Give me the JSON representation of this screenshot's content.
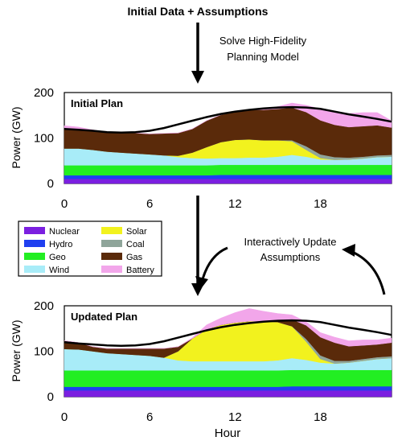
{
  "header": {
    "top_label": "Initial Data + Assumptions",
    "solve_label_line1": "Solve High-Fidelity",
    "solve_label_line2": "Planning Model",
    "update_label_line1": "Interactively Update",
    "update_label_line2": "Assumptions"
  },
  "axes": {
    "ylabel": "Power (GW)",
    "xlabel": "Hour",
    "yticks": [
      "0",
      "100",
      "200"
    ],
    "xticks": [
      "0",
      "6",
      "12",
      "18"
    ]
  },
  "legend": {
    "items": [
      {
        "label": "Nuclear",
        "color": "#7b1fe0"
      },
      {
        "label": "Hydro",
        "color": "#1f3ff0"
      },
      {
        "label": "Geo",
        "color": "#22ee22"
      },
      {
        "label": "Wind",
        "color": "#a8ecf8"
      },
      {
        "label": "Solar",
        "color": "#f2f21e"
      },
      {
        "label": "Coal",
        "color": "#8fa59a"
      },
      {
        "label": "Gas",
        "color": "#5a2a0a"
      },
      {
        "label": "Battery",
        "color": "#f2a6ea"
      }
    ]
  },
  "chart_data": [
    {
      "type": "area",
      "title": "Initial Plan",
      "xlabel": "",
      "ylabel": "Power (GW)",
      "xlim": [
        0,
        23
      ],
      "ylim": [
        0,
        200
      ],
      "x": [
        0,
        1,
        2,
        3,
        4,
        5,
        6,
        7,
        8,
        9,
        10,
        11,
        12,
        13,
        14,
        15,
        16,
        17,
        18,
        19,
        20,
        21,
        22,
        23
      ],
      "series": [
        {
          "name": "Nuclear",
          "color": "#7b1fe0",
          "values": [
            10,
            10,
            10,
            10,
            10,
            10,
            10,
            10,
            10,
            10,
            10,
            10,
            10,
            10,
            10,
            10,
            10,
            10,
            10,
            10,
            10,
            10,
            10,
            10
          ]
        },
        {
          "name": "Hydro",
          "color": "#1f3ff0",
          "values": [
            8,
            8,
            8,
            8,
            8,
            8,
            8,
            8,
            8,
            8,
            8,
            9,
            9,
            9,
            9,
            9,
            9,
            9,
            9,
            9,
            9,
            9,
            9,
            9
          ]
        },
        {
          "name": "Geo",
          "color": "#22ee22",
          "values": [
            22,
            22,
            22,
            22,
            22,
            22,
            22,
            22,
            22,
            22,
            22,
            22,
            22,
            22,
            22,
            22,
            22,
            22,
            22,
            22,
            22,
            22,
            22,
            22
          ]
        },
        {
          "name": "Wind",
          "color": "#a8ecf8",
          "values": [
            37,
            37,
            34,
            30,
            28,
            26,
            24,
            22,
            18,
            16,
            15,
            15,
            15,
            16,
            16,
            18,
            22,
            18,
            12,
            11,
            12,
            14,
            17,
            18
          ]
        },
        {
          "name": "Solar",
          "color": "#f2f21e",
          "values": [
            0,
            0,
            0,
            0,
            0,
            0,
            0,
            0,
            3,
            12,
            25,
            35,
            40,
            40,
            38,
            36,
            30,
            15,
            3,
            0,
            0,
            0,
            0,
            0
          ]
        },
        {
          "name": "Coal",
          "color": "#8fa59a",
          "values": [
            0,
            0,
            0,
            0,
            0,
            0,
            0,
            0,
            0,
            0,
            0,
            0,
            0,
            0,
            0,
            0,
            2,
            8,
            8,
            6,
            4,
            4,
            4,
            4
          ]
        },
        {
          "name": "Gas",
          "color": "#5a2a0a",
          "values": [
            45,
            42,
            42,
            43,
            44,
            45,
            45,
            48,
            50,
            52,
            58,
            60,
            62,
            65,
            67,
            69,
            72,
            75,
            75,
            71,
            67,
            67,
            66,
            60
          ]
        },
        {
          "name": "Battery",
          "color": "#f2a6ea",
          "values": [
            5,
            5,
            2,
            0,
            0,
            0,
            0,
            0,
            0,
            0,
            0,
            0,
            0,
            0,
            2,
            5,
            10,
            15,
            25,
            30,
            30,
            30,
            28,
            15
          ]
        }
      ],
      "demand": [
        120,
        118,
        116,
        113,
        112,
        113,
        116,
        122,
        130,
        138,
        146,
        153,
        158,
        162,
        165,
        167,
        168,
        167,
        164,
        158,
        152,
        147,
        142,
        136
      ]
    },
    {
      "type": "area",
      "title": "Updated Plan",
      "xlabel": "Hour",
      "ylabel": "Power (GW)",
      "xlim": [
        0,
        23
      ],
      "ylim": [
        0,
        200
      ],
      "x": [
        0,
        1,
        2,
        3,
        4,
        5,
        6,
        7,
        8,
        9,
        10,
        11,
        12,
        13,
        14,
        15,
        16,
        17,
        18,
        19,
        20,
        21,
        22,
        23
      ],
      "series": [
        {
          "name": "Nuclear",
          "color": "#7b1fe0",
          "values": [
            14,
            14,
            14,
            14,
            14,
            14,
            14,
            14,
            14,
            14,
            14,
            14,
            14,
            14,
            14,
            14,
            14,
            14,
            14,
            14,
            14,
            14,
            14,
            14
          ]
        },
        {
          "name": "Hydro",
          "color": "#1f3ff0",
          "values": [
            8,
            8,
            8,
            8,
            8,
            8,
            8,
            8,
            8,
            8,
            8,
            8,
            8,
            8,
            8,
            8,
            9,
            9,
            9,
            9,
            9,
            9,
            9,
            9
          ]
        },
        {
          "name": "Geo",
          "color": "#22ee22",
          "values": [
            36,
            36,
            36,
            36,
            36,
            36,
            36,
            36,
            36,
            36,
            36,
            36,
            36,
            36,
            36,
            36,
            36,
            36,
            36,
            36,
            36,
            36,
            36,
            36
          ]
        },
        {
          "name": "Wind",
          "color": "#a8ecf8",
          "values": [
            47,
            46,
            42,
            38,
            36,
            34,
            32,
            28,
            22,
            20,
            20,
            20,
            20,
            20,
            20,
            22,
            26,
            22,
            16,
            14,
            16,
            20,
            24,
            26
          ]
        },
        {
          "name": "Solar",
          "color": "#f2f21e",
          "values": [
            0,
            0,
            0,
            0,
            0,
            0,
            0,
            0,
            20,
            50,
            70,
            80,
            85,
            88,
            88,
            84,
            70,
            40,
            8,
            0,
            0,
            0,
            0,
            0
          ]
        },
        {
          "name": "Coal",
          "color": "#8fa59a",
          "values": [
            0,
            0,
            0,
            0,
            0,
            0,
            0,
            0,
            0,
            0,
            0,
            0,
            0,
            0,
            0,
            0,
            0,
            6,
            8,
            6,
            4,
            4,
            4,
            4
          ]
        },
        {
          "name": "Gas",
          "color": "#5a2a0a",
          "values": [
            18,
            15,
            10,
            10,
            12,
            14,
            16,
            20,
            10,
            0,
            0,
            0,
            0,
            0,
            0,
            5,
            15,
            30,
            40,
            40,
            32,
            30,
            28,
            30
          ]
        },
        {
          "name": "Battery",
          "color": "#f2a6ea",
          "values": [
            0,
            0,
            0,
            0,
            0,
            0,
            0,
            0,
            0,
            2,
            10,
            15,
            22,
            28,
            22,
            14,
            10,
            8,
            10,
            12,
            12,
            12,
            10,
            10
          ]
        }
      ],
      "demand": [
        120,
        117,
        115,
        113,
        112,
        113,
        116,
        122,
        130,
        138,
        146,
        153,
        158,
        162,
        165,
        167,
        168,
        167,
        164,
        158,
        152,
        147,
        142,
        136
      ]
    }
  ]
}
